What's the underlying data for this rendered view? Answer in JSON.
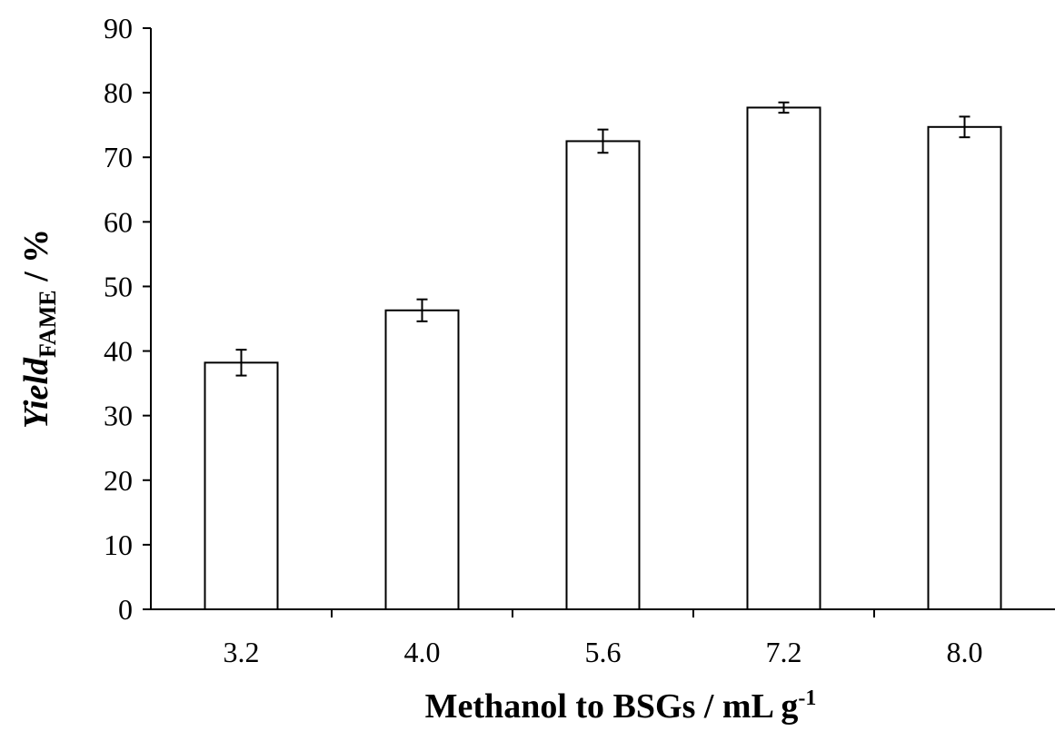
{
  "chart_data": {
    "type": "bar",
    "categories": [
      "3.2",
      "4.0",
      "5.6",
      "7.2",
      "8.0"
    ],
    "values": [
      38.2,
      46.3,
      72.5,
      77.7,
      74.7
    ],
    "errors": [
      2.0,
      1.7,
      1.8,
      0.8,
      1.6
    ],
    "xlabel": {
      "main": "Methanol to BSGs  / mL g",
      "superscript": "-1"
    },
    "ylabel": {
      "italic": "Yield",
      "subscript": "FAME",
      "suffix": " / %"
    },
    "ylim": [
      0,
      90
    ],
    "yticks": [
      0,
      10,
      20,
      30,
      40,
      50,
      60,
      70,
      80,
      90
    ],
    "grid": false,
    "legend": "none",
    "colors": {
      "bar_fill": "#ffffff",
      "bar_stroke": "#000000",
      "axis": "#000000"
    }
  }
}
